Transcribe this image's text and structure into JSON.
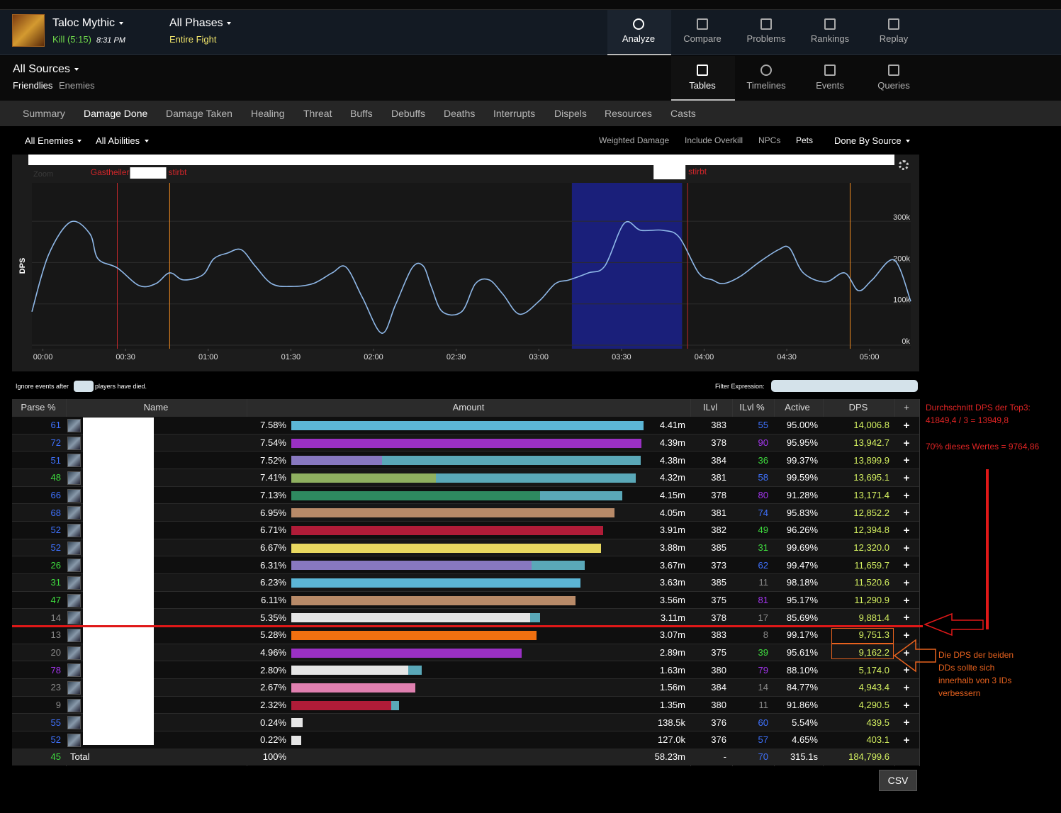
{
  "header": {
    "encounter": "Taloc Mythic",
    "result": "Kill (5:15)",
    "time": "8:31 PM",
    "phase": "All Phases",
    "phase_range": "Entire Fight",
    "nav": [
      "Analyze",
      "Compare",
      "Problems",
      "Rankings",
      "Replay"
    ]
  },
  "sources": {
    "title": "All Sources",
    "filters": [
      "Friendlies",
      "Enemies"
    ],
    "views": [
      "Tables",
      "Timelines",
      "Events",
      "Queries"
    ]
  },
  "tabs": [
    "Summary",
    "Damage Done",
    "Damage Taken",
    "Healing",
    "Threat",
    "Buffs",
    "Debuffs",
    "Deaths",
    "Interrupts",
    "Dispels",
    "Resources",
    "Casts"
  ],
  "filters": {
    "left": [
      "All Enemies",
      "All Abilities"
    ],
    "right": [
      "Weighted Damage",
      "Include Overkill",
      "NPCs",
      "Pets",
      "Done By Source"
    ]
  },
  "chart": {
    "type": "line",
    "zoom": "Zoom",
    "y_label": "DPS",
    "xlim": [
      -4,
      315
    ],
    "ylim": [
      -8600,
      392800
    ],
    "xticks": [
      {
        "value": 0,
        "label": "00:00"
      },
      {
        "value": 30,
        "label": "00:30"
      },
      {
        "value": 60,
        "label": "01:00"
      },
      {
        "value": 90,
        "label": "01:30"
      },
      {
        "value": 120,
        "label": "02:00"
      },
      {
        "value": 150,
        "label": "02:30"
      },
      {
        "value": 180,
        "label": "03:00"
      },
      {
        "value": 210,
        "label": "03:30"
      },
      {
        "value": 240,
        "label": "04:00"
      },
      {
        "value": 270,
        "label": "04:30"
      },
      {
        "value": 300,
        "label": "05:00"
      }
    ],
    "yticks": [
      {
        "value": 0,
        "label": "0k"
      },
      {
        "value": 100000,
        "label": "100k"
      },
      {
        "value": 200000,
        "label": "200k"
      },
      {
        "value": 300000,
        "label": "300k"
      }
    ],
    "grid": true,
    "line": {
      "color": "#8fb8e8",
      "x": [
        -4,
        2,
        10,
        17,
        20,
        27,
        35,
        41,
        46,
        51,
        58,
        62,
        67,
        72,
        77,
        83,
        90,
        98,
        105,
        110,
        116,
        123,
        128,
        134,
        138,
        141,
        145,
        152,
        157,
        162,
        167,
        173,
        180,
        186,
        191,
        198,
        204,
        211,
        217,
        225,
        231,
        238,
        243,
        247,
        253,
        260,
        267,
        271,
        276,
        284,
        291,
        296,
        301,
        309,
        315
      ],
      "values": [
        81000,
        218000,
        298000,
        270000,
        209000,
        187000,
        144000,
        149000,
        175000,
        158000,
        170000,
        209000,
        223000,
        231000,
        192000,
        149000,
        142000,
        149000,
        175000,
        189000,
        115000,
        29000,
        98000,
        187000,
        192000,
        141000,
        81000,
        81000,
        149000,
        158000,
        123000,
        75000,
        106000,
        149000,
        158000,
        175000,
        192000,
        295000,
        278000,
        278000,
        261000,
        175000,
        158000,
        149000,
        166000,
        201000,
        231000,
        235000,
        175000,
        153000,
        175000,
        132000,
        158000,
        206000,
        106000
      ]
    },
    "highlight": {
      "color": "#1a1f7a",
      "x": [
        192,
        232
      ]
    },
    "death_lines": {
      "color": "#c0282a",
      "items": [
        {
          "x": 27,
          "texts": [
            "Gastheiler",
            "stirbt"
          ]
        },
        {
          "x": 234,
          "texts": [
            "stirbt"
          ]
        }
      ]
    },
    "phase_lines": {
      "color": "#f08a20",
      "x": [
        46,
        293
      ]
    }
  },
  "options": {
    "ignore_before": "Ignore events after",
    "ignore_after": "players have died.",
    "filter": "Filter Expression:"
  },
  "table": {
    "columns": [
      "Parse %",
      "Name",
      "Amount",
      "ILvl",
      "ILvl %",
      "Active",
      "DPS",
      "+"
    ],
    "row_action": "+",
    "rows": [
      {
        "parse": 61,
        "percent": 7.58,
        "percent_label": "7.58%",
        "amount": "4.41m",
        "ilvl": "383",
        "ilvl_pct": 55,
        "active": "95.00%",
        "dps": "14,006.8",
        "bar": [
          {
            "color": "#5cb6d6",
            "share": 1
          }
        ]
      },
      {
        "parse": 72,
        "percent": 7.54,
        "percent_label": "7.54%",
        "amount": "4.39m",
        "ilvl": "378",
        "ilvl_pct": 90,
        "active": "95.95%",
        "dps": "13,942.7",
        "bar": [
          {
            "color": "#9a30c4",
            "share": 1
          }
        ]
      },
      {
        "parse": 51,
        "percent": 7.52,
        "percent_label": "7.52%",
        "amount": "4.38m",
        "ilvl": "384",
        "ilvl_pct": 36,
        "active": "99.37%",
        "dps": "13,899.9",
        "bar": [
          {
            "color": "#8878c0",
            "share": 0.26
          },
          {
            "color": "#5aa8b8",
            "share": 0.74
          }
        ]
      },
      {
        "parse": 48,
        "percent": 7.41,
        "percent_label": "7.41%",
        "amount": "4.32m",
        "ilvl": "381",
        "ilvl_pct": 58,
        "active": "99.59%",
        "dps": "13,695.1",
        "bar": [
          {
            "color": "#8fb060",
            "share": 0.42
          },
          {
            "color": "#5aa8b8",
            "share": 0.58
          }
        ]
      },
      {
        "parse": 66,
        "percent": 7.13,
        "percent_label": "7.13%",
        "amount": "4.15m",
        "ilvl": "378",
        "ilvl_pct": 80,
        "active": "91.28%",
        "dps": "13,171.4",
        "bar": [
          {
            "color": "#2e8a60",
            "share": 0.75
          },
          {
            "color": "#5aa8b8",
            "share": 0.25
          }
        ]
      },
      {
        "parse": 68,
        "percent": 6.95,
        "percent_label": "6.95%",
        "amount": "4.05m",
        "ilvl": "381",
        "ilvl_pct": 74,
        "active": "95.83%",
        "dps": "12,852.2",
        "bar": [
          {
            "color": "#b88a68",
            "share": 1
          }
        ]
      },
      {
        "parse": 52,
        "percent": 6.71,
        "percent_label": "6.71%",
        "amount": "3.91m",
        "ilvl": "382",
        "ilvl_pct": 49,
        "active": "96.26%",
        "dps": "12,394.8",
        "bar": [
          {
            "color": "#b01c38",
            "share": 1
          }
        ]
      },
      {
        "parse": 52,
        "percent": 6.67,
        "percent_label": "6.67%",
        "amount": "3.88m",
        "ilvl": "385",
        "ilvl_pct": 31,
        "active": "99.69%",
        "dps": "12,320.0",
        "bar": [
          {
            "color": "#e8d860",
            "share": 1
          }
        ]
      },
      {
        "parse": 26,
        "percent": 6.31,
        "percent_label": "6.31%",
        "amount": "3.67m",
        "ilvl": "373",
        "ilvl_pct": 62,
        "active": "99.47%",
        "dps": "11,659.7",
        "bar": [
          {
            "color": "#8878c0",
            "share": 0.82
          },
          {
            "color": "#5aa8b8",
            "share": 0.18
          }
        ]
      },
      {
        "parse": 31,
        "percent": 6.23,
        "percent_label": "6.23%",
        "amount": "3.63m",
        "ilvl": "385",
        "ilvl_pct": 11,
        "active": "98.18%",
        "dps": "11,520.6",
        "bar": [
          {
            "color": "#5cb6d6",
            "share": 1
          }
        ]
      },
      {
        "parse": 47,
        "percent": 6.11,
        "percent_label": "6.11%",
        "amount": "3.56m",
        "ilvl": "375",
        "ilvl_pct": 81,
        "active": "95.17%",
        "dps": "11,290.9",
        "bar": [
          {
            "color": "#b88a68",
            "share": 1
          }
        ]
      },
      {
        "parse": 14,
        "percent": 5.35,
        "percent_label": "5.35%",
        "amount": "3.11m",
        "ilvl": "378",
        "ilvl_pct": 17,
        "active": "85.69%",
        "dps": "9,881.4",
        "bar": [
          {
            "color": "#e6e6e6",
            "share": 0.96
          },
          {
            "color": "#5aa8b8",
            "share": 0.04
          }
        ]
      },
      {
        "parse": 13,
        "percent": 5.28,
        "percent_label": "5.28%",
        "amount": "3.07m",
        "ilvl": "383",
        "ilvl_pct": 8,
        "active": "99.17%",
        "dps": "9,751.3",
        "bar": [
          {
            "color": "#f07010",
            "share": 1
          }
        ]
      },
      {
        "parse": 20,
        "percent": 4.96,
        "percent_label": "4.96%",
        "amount": "2.89m",
        "ilvl": "375",
        "ilvl_pct": 39,
        "active": "95.61%",
        "dps": "9,162.2",
        "bar": [
          {
            "color": "#9a30c4",
            "share": 1
          }
        ]
      },
      {
        "parse": 78,
        "percent": 2.8,
        "percent_label": "2.80%",
        "amount": "1.63m",
        "ilvl": "380",
        "ilvl_pct": 79,
        "active": "88.10%",
        "dps": "5,174.0",
        "bar": [
          {
            "color": "#e6e6e6",
            "share": 0.9
          },
          {
            "color": "#5aa8b8",
            "share": 0.1
          }
        ]
      },
      {
        "parse": 23,
        "percent": 2.67,
        "percent_label": "2.67%",
        "amount": "1.56m",
        "ilvl": "384",
        "ilvl_pct": 14,
        "active": "84.77%",
        "dps": "4,943.4",
        "bar": [
          {
            "color": "#e080b0",
            "share": 1
          }
        ]
      },
      {
        "parse": 9,
        "percent": 2.32,
        "percent_label": "2.32%",
        "amount": "1.35m",
        "ilvl": "380",
        "ilvl_pct": 11,
        "active": "91.86%",
        "dps": "4,290.5",
        "bar": [
          {
            "color": "#b01c38",
            "share": 0.93
          },
          {
            "color": "#5aa8b8",
            "share": 0.07
          }
        ]
      },
      {
        "parse": 55,
        "percent": 0.24,
        "percent_label": "0.24%",
        "amount": "138.5k",
        "ilvl": "376",
        "ilvl_pct": 60,
        "active": "5.54%",
        "dps": "439.5",
        "bar": [
          {
            "color": "#e6e6e6",
            "share": 1
          }
        ]
      },
      {
        "parse": 52,
        "percent": 0.22,
        "percent_label": "0.22%",
        "amount": "127.0k",
        "ilvl": "376",
        "ilvl_pct": 57,
        "active": "4.65%",
        "dps": "403.1",
        "bar": [
          {
            "color": "#e6e6e6",
            "share": 1
          }
        ]
      }
    ],
    "total": {
      "parse": 45,
      "name": "Total",
      "percent_label": "100%",
      "amount": "58.23m",
      "ilvl": "-",
      "ilvl_pct": 70,
      "active": "315.1s",
      "dps": "184,799.6"
    }
  },
  "csv": "CSV",
  "notes": {
    "average": [
      "Durchschnitt DPS der Top3:",
      "41849,4 / 3 = 13949,8",
      "70% dieses Wertes = 9764,86"
    ],
    "comment": [
      "Die DPS der beiden",
      "DDs sollte sich",
      "innerhalb von 3 IDs",
      "verbessern"
    ]
  }
}
